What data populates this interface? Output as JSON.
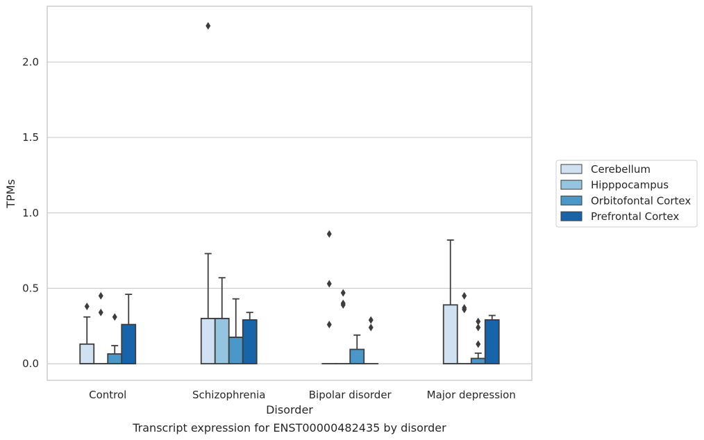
{
  "chart_data": {
    "type": "box",
    "xlabel": "Disorder",
    "ylabel": "TPMs",
    "caption": "Transcript expression for ENST00000482435 by disorder",
    "ylim": [
      -0.11,
      2.37
    ],
    "yticks": [
      "0.0",
      "0.5",
      "1.0",
      "1.5",
      "2.0"
    ],
    "ytick_values": [
      0.0,
      0.5,
      1.0,
      1.5,
      2.0
    ],
    "grid": "horizontal",
    "legend_position": "right",
    "categories": [
      "Control",
      "Schizophrenia",
      "Bipolar disorder",
      "Major depression"
    ],
    "series": [
      {
        "name": "Cerebellum",
        "color": "#d0e1f2"
      },
      {
        "name": "Hipppocampus",
        "color": "#94c4df"
      },
      {
        "name": "Orbitofontal Cortex",
        "color": "#4a98c9"
      },
      {
        "name": "Prefrontal Cortex",
        "color": "#1764ab"
      }
    ],
    "boxes": [
      [
        {
          "q1": 0,
          "median": 0,
          "q3": 0.13,
          "whisker_low": 0,
          "whisker_high": 0.31,
          "outliers": [
            0.38
          ]
        },
        {
          "q1": 0,
          "median": 0,
          "q3": 0,
          "whisker_low": 0,
          "whisker_high": 0,
          "outliers": [
            0.34,
            0.45
          ]
        },
        {
          "q1": 0,
          "median": 0,
          "q3": 0.065,
          "whisker_low": 0,
          "whisker_high": 0.12,
          "outliers": [
            0.31
          ]
        },
        {
          "q1": 0,
          "median": 0,
          "q3": 0.26,
          "whisker_low": 0,
          "whisker_high": 0.46,
          "outliers": []
        }
      ],
      [
        {
          "q1": 0,
          "median": 0.3,
          "q3": 0.3,
          "whisker_low": 0,
          "whisker_high": 0.73,
          "outliers": [
            2.24
          ]
        },
        {
          "q1": 0,
          "median": 0.3,
          "q3": 0.3,
          "whisker_low": 0,
          "whisker_high": 0.57,
          "outliers": []
        },
        {
          "q1": 0,
          "median": 0.175,
          "q3": 0.175,
          "whisker_low": 0,
          "whisker_high": 0.43,
          "outliers": []
        },
        {
          "q1": 0,
          "median": 0.29,
          "q3": 0.29,
          "whisker_low": 0,
          "whisker_high": 0.34,
          "outliers": []
        }
      ],
      [
        {
          "q1": 0,
          "median": 0,
          "q3": 0,
          "whisker_low": 0,
          "whisker_high": 0,
          "outliers": [
            0.26,
            0.53,
            0.86
          ]
        },
        {
          "q1": 0,
          "median": 0,
          "q3": 0,
          "whisker_low": 0,
          "whisker_high": 0,
          "outliers": [
            0.39,
            0.4,
            0.47
          ]
        },
        {
          "q1": 0,
          "median": 0,
          "q3": 0.095,
          "whisker_low": 0,
          "whisker_high": 0.19,
          "outliers": []
        },
        {
          "q1": 0,
          "median": 0,
          "q3": 0,
          "whisker_low": 0,
          "whisker_high": 0,
          "outliers": [
            0.24,
            0.29
          ]
        }
      ],
      [
        {
          "q1": 0,
          "median": 0,
          "q3": 0.39,
          "whisker_low": 0,
          "whisker_high": 0.82,
          "outliers": []
        },
        {
          "q1": 0,
          "median": 0,
          "q3": 0,
          "whisker_low": 0,
          "whisker_high": 0,
          "outliers": [
            0.36,
            0.37,
            0.45
          ]
        },
        {
          "q1": 0,
          "median": 0,
          "q3": 0.035,
          "whisker_low": 0,
          "whisker_high": 0.07,
          "outliers": [
            0.13,
            0.24,
            0.28
          ]
        },
        {
          "q1": 0,
          "median": 0.29,
          "q3": 0.29,
          "whisker_low": 0,
          "whisker_high": 0.32,
          "outliers": []
        }
      ]
    ]
  }
}
